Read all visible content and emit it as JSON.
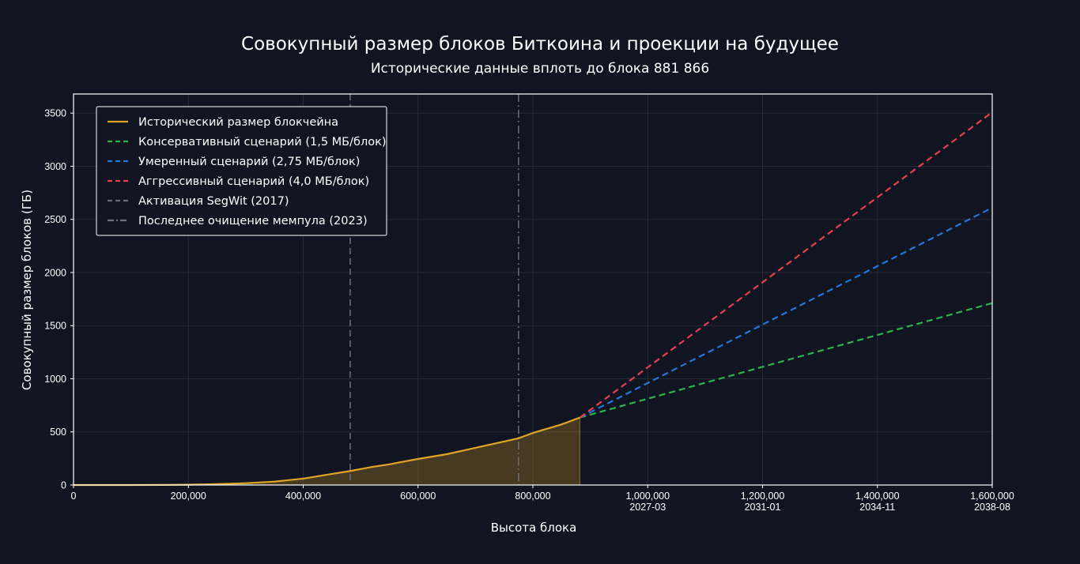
{
  "chart_data": {
    "type": "line",
    "title": "Совокупный размер блоков Биткоина и проекции на будущее",
    "subtitle": "Исторические данные вплоть до блока 881 866",
    "xlabel": "Высота блока",
    "ylabel": "Совокупный размер блоков (ГБ)",
    "xlim": [
      0,
      1600000
    ],
    "ylim": [
      0,
      3680
    ],
    "grid": true,
    "legend_position": "top-left",
    "x_ticks": [
      {
        "value": 0,
        "label": "0",
        "date": ""
      },
      {
        "value": 200000,
        "label": "200,000",
        "date": ""
      },
      {
        "value": 400000,
        "label": "400,000",
        "date": ""
      },
      {
        "value": 600000,
        "label": "600,000",
        "date": ""
      },
      {
        "value": 800000,
        "label": "800,000",
        "date": ""
      },
      {
        "value": 1000000,
        "label": "1,000,000",
        "date": "2027-03"
      },
      {
        "value": 1200000,
        "label": "1,200,000",
        "date": "2031-01"
      },
      {
        "value": 1400000,
        "label": "1,400,000",
        "date": "2034-11"
      },
      {
        "value": 1600000,
        "label": "1,600,000",
        "date": "2038-08"
      }
    ],
    "y_ticks": [
      0,
      500,
      1000,
      1500,
      2000,
      2500,
      3000,
      3500
    ],
    "series": [
      {
        "name": "Исторический размер блокчейна",
        "color": "#e0a526",
        "style": "solid",
        "fill": true,
        "points": [
          [
            0,
            0
          ],
          [
            100000,
            0.3
          ],
          [
            150000,
            1
          ],
          [
            200000,
            3
          ],
          [
            250000,
            8
          ],
          [
            300000,
            17
          ],
          [
            350000,
            32
          ],
          [
            400000,
            60
          ],
          [
            450000,
            105
          ],
          [
            480000,
            130
          ],
          [
            500000,
            150
          ],
          [
            520000,
            170
          ],
          [
            550000,
            195
          ],
          [
            580000,
            225
          ],
          [
            600000,
            245
          ],
          [
            650000,
            290
          ],
          [
            700000,
            350
          ],
          [
            750000,
            410
          ],
          [
            775000,
            440
          ],
          [
            800000,
            490
          ],
          [
            850000,
            570
          ],
          [
            881866,
            635
          ]
        ]
      },
      {
        "name": "Консервативный сценарий (1,5 МБ/блок)",
        "color": "#2fb44a",
        "style": "dashed",
        "points": [
          [
            881866,
            635
          ],
          [
            1600000,
            1712
          ]
        ]
      },
      {
        "name": "Умеренный сценарий (2,75 МБ/блок)",
        "color": "#2377d8",
        "style": "dashed",
        "points": [
          [
            881866,
            635
          ],
          [
            1600000,
            2610
          ]
        ]
      },
      {
        "name": "Аггрессивный сценарий (4,0 МБ/блок)",
        "color": "#e5404f",
        "style": "dashed",
        "points": [
          [
            881866,
            635
          ],
          [
            1600000,
            3508
          ]
        ]
      }
    ],
    "vlines": [
      {
        "name": "Активация SegWit (2017)",
        "x": 481824,
        "color": "#6b6f7d",
        "style": "dashed"
      },
      {
        "name": "Последнее очищение мемпула (2023)",
        "x": 775000,
        "color": "#6b6f7d",
        "style": "dashdot"
      }
    ]
  }
}
